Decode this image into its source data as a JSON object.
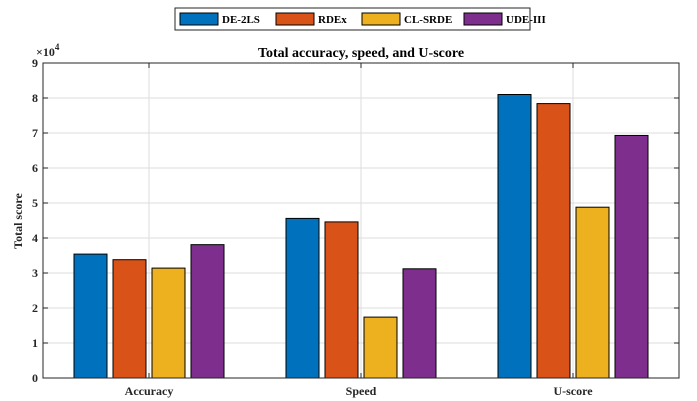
{
  "chart_data": {
    "type": "bar",
    "title": "Total accuracy, speed, and U-score",
    "xlabel": "",
    "ylabel": "Total score",
    "exponent_label": "×10",
    "exponent_power": "4",
    "ylim": [
      0,
      90000
    ],
    "yticks": [
      0,
      10000,
      20000,
      30000,
      40000,
      50000,
      60000,
      70000,
      80000,
      90000
    ],
    "ytick_labels": [
      "0",
      "1",
      "2",
      "3",
      "4",
      "5",
      "6",
      "7",
      "8",
      "9"
    ],
    "grid": true,
    "legend_position": "top-center",
    "categories": [
      "Accuracy",
      "Speed",
      "U-score"
    ],
    "series": [
      {
        "name": "DE-2LS",
        "color": "#0072BD",
        "values": [
          35400,
          45600,
          81000
        ]
      },
      {
        "name": "RDEx",
        "color": "#D95319",
        "values": [
          33800,
          44600,
          78400
        ]
      },
      {
        "name": "CL-SRDE",
        "color": "#EDB120",
        "values": [
          31400,
          17400,
          48800
        ]
      },
      {
        "name": "UDE-III",
        "color": "#7E2F8E",
        "values": [
          38100,
          31200,
          69300
        ]
      }
    ]
  }
}
